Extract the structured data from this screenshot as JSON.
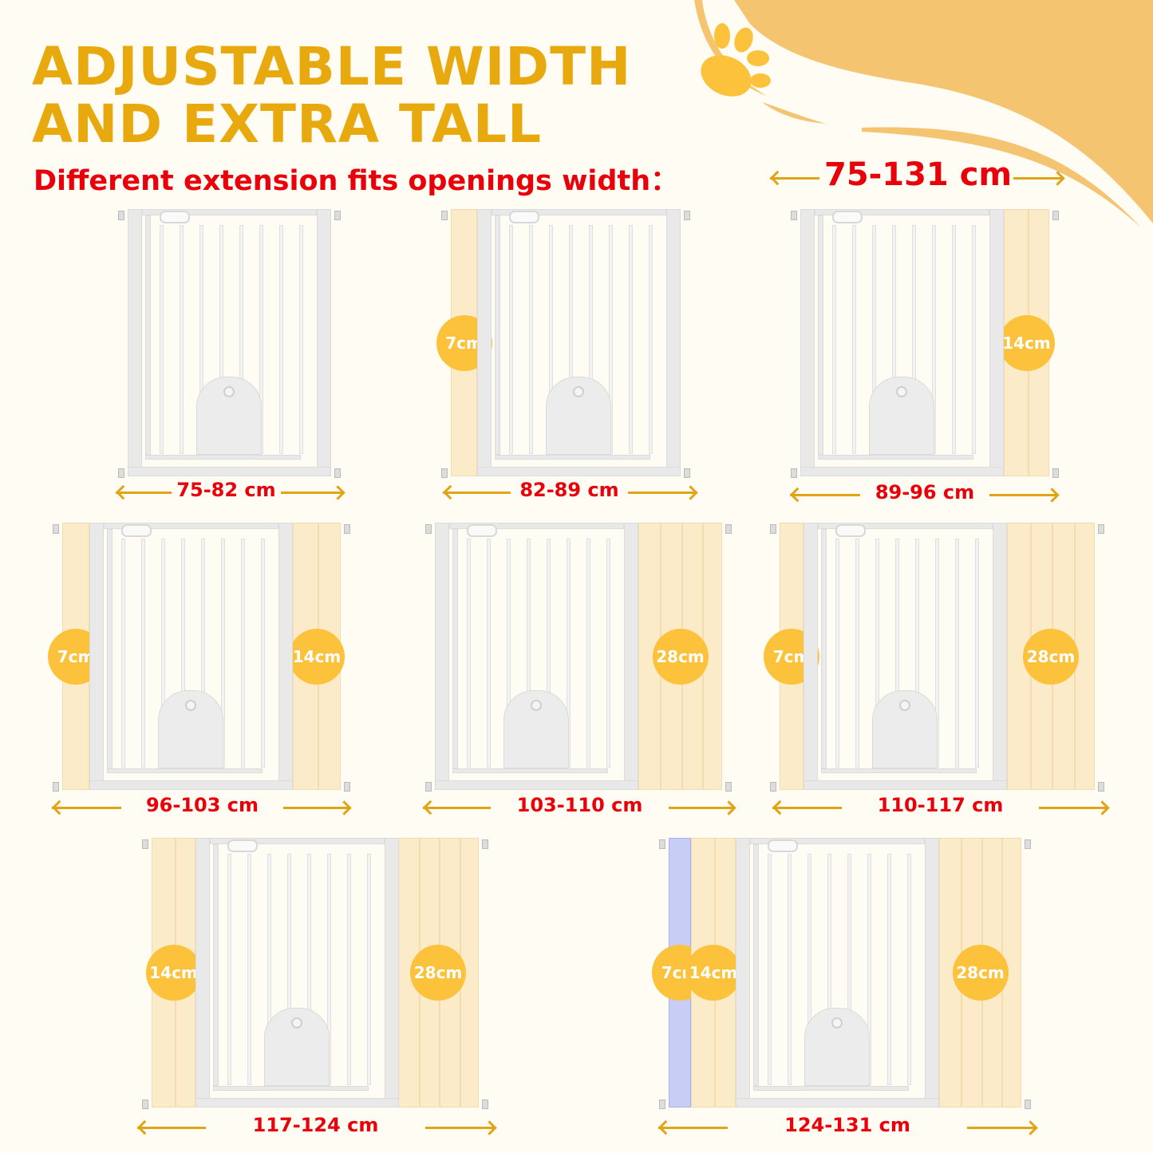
{
  "title_lines": [
    "ADJUSTABLE WIDTH",
    "AND EXTRA TALL"
  ],
  "subtitle": "Different extension fits openings width：",
  "overall_range": "75-131 cm",
  "decoration": {
    "paw_icon": "paw-print-icon",
    "wave_color": "#f5c470",
    "paw_color": "#fcc23c"
  },
  "colors": {
    "title": "#e8a90e",
    "labels": "#e8000b",
    "arrows": "#e0a516",
    "extension": "#fcebc8",
    "extension_7cm_alt": "#c8cdf5",
    "badge": "#fcc23c"
  },
  "gates": [
    {
      "label": "75-82 cm",
      "extensions": []
    },
    {
      "label": "82-89 cm",
      "extensions": [
        "7cm"
      ]
    },
    {
      "label": "89-96 cm",
      "extensions": [
        "14cm"
      ]
    },
    {
      "label": "96-103 cm",
      "extensions": [
        "7cm",
        "14cm"
      ]
    },
    {
      "label": "103-110 cm",
      "extensions": [
        "28cm"
      ]
    },
    {
      "label": "110-117 cm",
      "extensions": [
        "7cm",
        "28cm"
      ]
    },
    {
      "label": "117-124 cm",
      "extensions": [
        "14cm",
        "28cm"
      ]
    },
    {
      "label": "124-131 cm",
      "extensions": [
        "7cm",
        "14cm",
        "28cm"
      ]
    }
  ]
}
